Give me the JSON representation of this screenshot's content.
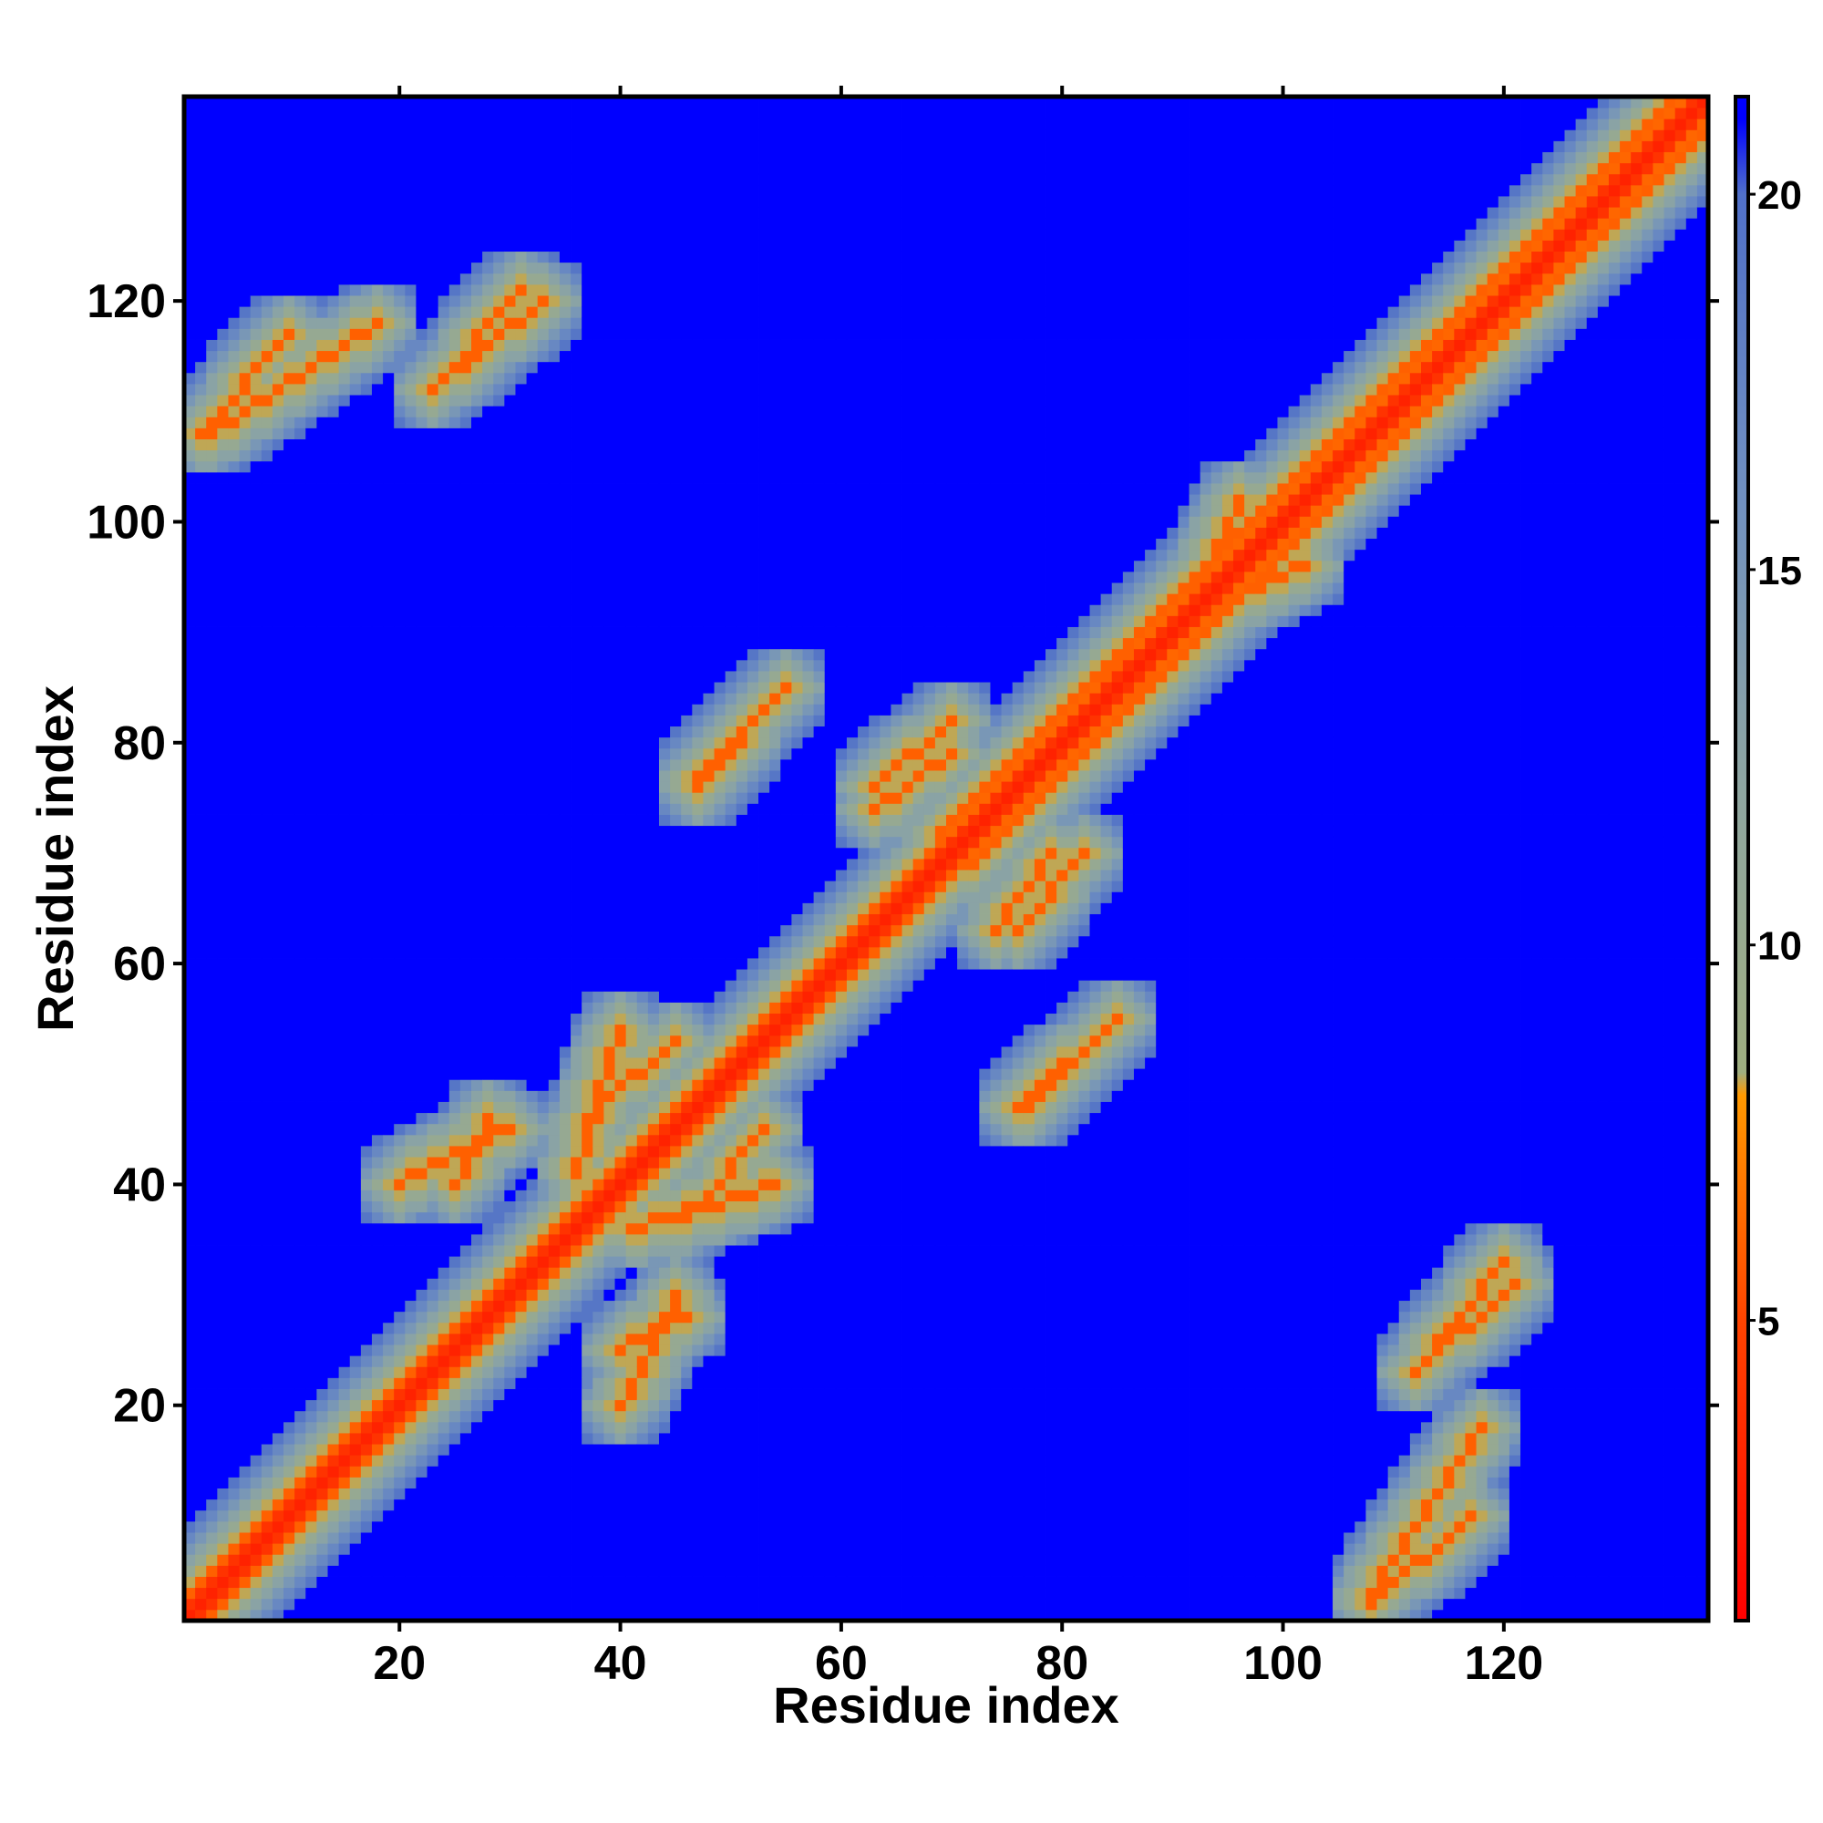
{
  "chart_data": {
    "type": "heatmap",
    "title": "",
    "xlabel": "Residue index",
    "ylabel": "Residue index",
    "n_residues": 138,
    "xlim": [
      1,
      138
    ],
    "ylim": [
      1,
      138
    ],
    "x_ticks": [
      20,
      40,
      60,
      80,
      100,
      120
    ],
    "y_ticks": [
      20,
      40,
      60,
      80,
      100,
      120
    ],
    "x_tick_labels": [
      "20",
      "40",
      "60",
      "80",
      "100",
      "120"
    ],
    "y_tick_labels": [
      "20",
      "40",
      "60",
      "80",
      "100",
      "120"
    ],
    "colorbar": {
      "range": [
        1,
        21.3
      ],
      "ticks": [
        5,
        10,
        15,
        20
      ],
      "tick_labels": [
        "5",
        "10",
        "15",
        "20"
      ],
      "colors": [
        {
          "value": 1,
          "color": "#ff0000"
        },
        {
          "value": 5,
          "color": "#ff4400"
        },
        {
          "value": 8,
          "color": "#ff9900"
        },
        {
          "value": 8.3,
          "color": "#9fae80"
        },
        {
          "value": 12,
          "color": "#8fa6a0"
        },
        {
          "value": 16,
          "color": "#7090c0"
        },
        {
          "value": 20,
          "color": "#5070c8"
        },
        {
          "value": 21,
          "color": "#0000ff"
        }
      ]
    },
    "matrix_symmetric": true,
    "blank_value": 21.3,
    "blank_color": "#0000ff",
    "contact_segments": [
      {
        "i": [
          1,
          138
        ],
        "j": [
          1,
          138
        ],
        "value": 3
      },
      {
        "i": [
          1,
          137
        ],
        "j": [
          2,
          138
        ],
        "value": 4
      },
      {
        "i": [
          1,
          136
        ],
        "j": [
          3,
          139
        ],
        "value": 6
      },
      {
        "i": [
          3,
          18
        ],
        "j": [
          108,
          118
        ],
        "value": 6
      },
      {
        "i": [
          23,
          31
        ],
        "j": [
          112,
          121
        ],
        "value": 6
      },
      {
        "i": [
          25,
          28
        ],
        "j": [
          40,
          46
        ],
        "value": 6
      },
      {
        "i": [
          36,
          40
        ],
        "j": [
          41,
          54
        ],
        "value": 6
      },
      {
        "i": [
          40,
          45
        ],
        "j": [
          20,
          30
        ],
        "value": 6
      },
      {
        "i": [
          46,
          53
        ],
        "j": [
          37,
          45
        ],
        "value": 6
      },
      {
        "i": [
          47,
          55
        ],
        "j": [
          77,
          85
        ],
        "value": 6
      },
      {
        "i": [
          55,
          63
        ],
        "j": [
          55,
          65
        ],
        "value": 6
      },
      {
        "i": [
          63,
          70
        ],
        "j": [
          76,
          82
        ],
        "value": 6
      },
      {
        "i": [
          74,
          79
        ],
        "j": [
          63,
          70
        ],
        "value": 6
      },
      {
        "i": [
          76,
          85
        ],
        "j": [
          47,
          55
        ],
        "value": 6
      },
      {
        "i": [
          82,
          86
        ],
        "j": [
          83,
          88
        ],
        "value": 6
      },
      {
        "i": [
          93,
          102
        ],
        "j": [
          92,
          96
        ],
        "value": 6
      },
      {
        "i": [
          112,
          120
        ],
        "j": [
          23,
          33
        ],
        "value": 6
      },
      {
        "i": [
          108,
          117
        ],
        "j": [
          2,
          10
        ],
        "value": 6
      }
    ]
  }
}
